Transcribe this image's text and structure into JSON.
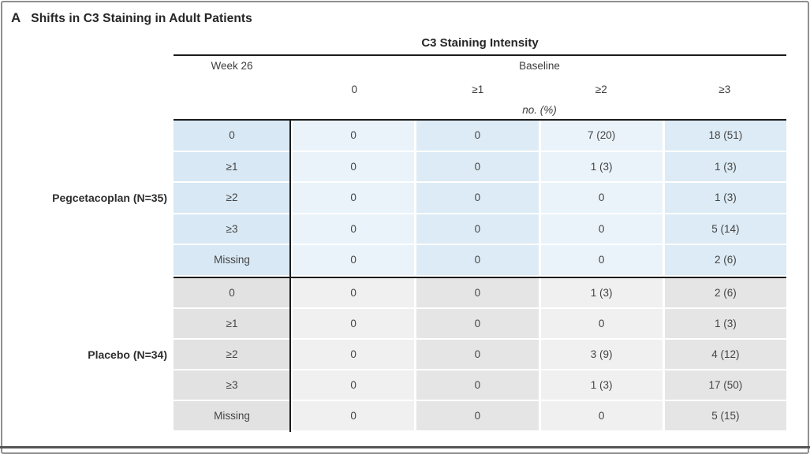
{
  "panel": {
    "letter": "A",
    "title": "Shifts in C3 Staining in Adult Patients"
  },
  "table": {
    "title": "C3 Staining Intensity",
    "week_col_header": "Week 26",
    "baseline_header": "Baseline",
    "columns": [
      "0",
      "≥1",
      "≥2",
      "≥3"
    ],
    "unit_note": "no. (%)",
    "groups": [
      {
        "label": "Pegcetacoplan (N=35)",
        "theme": "blue",
        "rows": [
          {
            "label": "0",
            "values": [
              "0",
              "0",
              "7 (20)",
              "18 (51)"
            ]
          },
          {
            "label": "≥1",
            "values": [
              "0",
              "0",
              "1 (3)",
              "1 (3)"
            ]
          },
          {
            "label": "≥2",
            "values": [
              "0",
              "0",
              "0",
              "1 (3)"
            ]
          },
          {
            "label": "≥3",
            "values": [
              "0",
              "0",
              "0",
              "5 (14)"
            ]
          },
          {
            "label": "Missing",
            "values": [
              "0",
              "0",
              "0",
              "2 (6)"
            ]
          }
        ]
      },
      {
        "label": "Placebo (N=34)",
        "theme": "gray",
        "rows": [
          {
            "label": "0",
            "values": [
              "0",
              "0",
              "1 (3)",
              "2 (6)"
            ]
          },
          {
            "label": "≥1",
            "values": [
              "0",
              "0",
              "0",
              "1 (3)"
            ]
          },
          {
            "label": "≥2",
            "values": [
              "0",
              "0",
              "3 (9)",
              "4 (12)"
            ]
          },
          {
            "label": "≥3",
            "values": [
              "0",
              "0",
              "1 (3)",
              "17 (50)"
            ]
          },
          {
            "label": "Missing",
            "values": [
              "0",
              "0",
              "0",
              "5 (15)"
            ]
          }
        ]
      }
    ]
  },
  "colors": {
    "line_black": "#1b1b1b",
    "frame_gray": "#8f8f8f",
    "divider_gray": "#555555",
    "blue_label": "#d8e8f4",
    "blue_light": "#eaf3fa",
    "blue_dark": "#dcebf5",
    "gray_label": "#e3e2e2",
    "gray_light": "#f1f0f0",
    "gray_dark": "#e6e5e5",
    "text": "#454545",
    "title_text": "#262626"
  }
}
